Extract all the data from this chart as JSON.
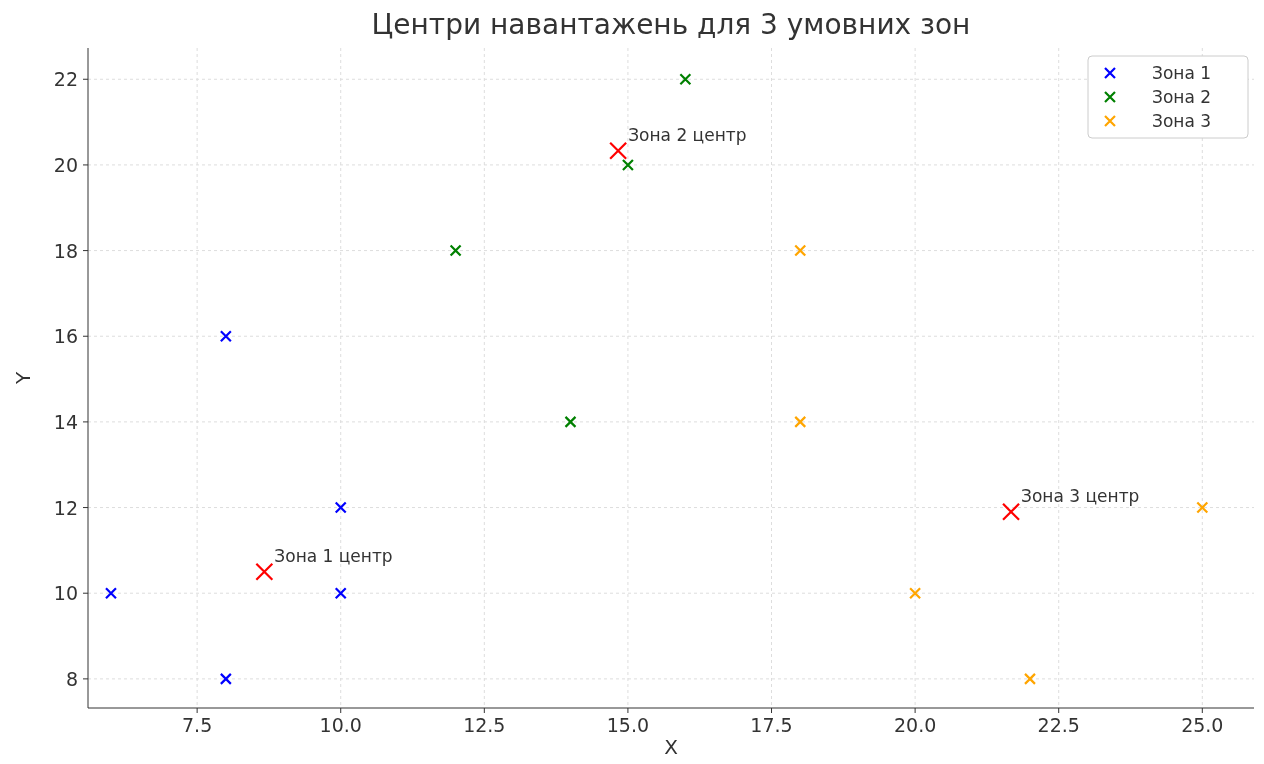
{
  "chart_data": {
    "type": "scatter",
    "title": "Центри навантажень для 3 умовних зон",
    "xlabel": "X",
    "ylabel": "Y",
    "xlim": [
      5.6,
      25.9
    ],
    "ylim": [
      7.32,
      22.73
    ],
    "xticks": [
      {
        "value": 7.5,
        "label": "7.5"
      },
      {
        "value": 10,
        "label": "10.0"
      },
      {
        "value": 12.5,
        "label": "12.5"
      },
      {
        "value": 15,
        "label": "15.0"
      },
      {
        "value": 17.5,
        "label": "17.5"
      },
      {
        "value": 20,
        "label": "20.0"
      },
      {
        "value": 22.5,
        "label": "22.5"
      },
      {
        "value": 25,
        "label": "25.0"
      }
    ],
    "yticks": [
      8,
      10,
      12,
      14,
      16,
      18,
      20,
      22
    ],
    "grid": true,
    "legend": "top right",
    "marker": "cross",
    "series": [
      {
        "name": "Зона 1",
        "color": "#0000ff",
        "x": [
          6,
          8,
          8,
          10,
          10
        ],
        "values": [
          10,
          8,
          16,
          10,
          12
        ]
      },
      {
        "name": "Зона 2",
        "color": "#008000",
        "x": [
          12,
          14,
          15,
          16
        ],
        "values": [
          18,
          14,
          20,
          22
        ]
      },
      {
        "name": "Зона 3",
        "color": "#ffa500",
        "x": [
          18,
          18,
          20,
          22,
          25
        ],
        "values": [
          18,
          14,
          10,
          8,
          12
        ]
      },
      {
        "color": "#ff0000",
        "x": [
          8.67,
          14.83,
          21.67
        ],
        "values": [
          10.5,
          20.33,
          11.9
        ]
      }
    ],
    "annotations": [
      {
        "text": "Зона 1 центр",
        "x": 8.67,
        "y": 10.5
      },
      {
        "text": "Зона 2 центр",
        "x": 14.83,
        "y": 20.33
      },
      {
        "text": "Зона 3 центр",
        "x": 21.67,
        "y": 11.9
      }
    ]
  }
}
